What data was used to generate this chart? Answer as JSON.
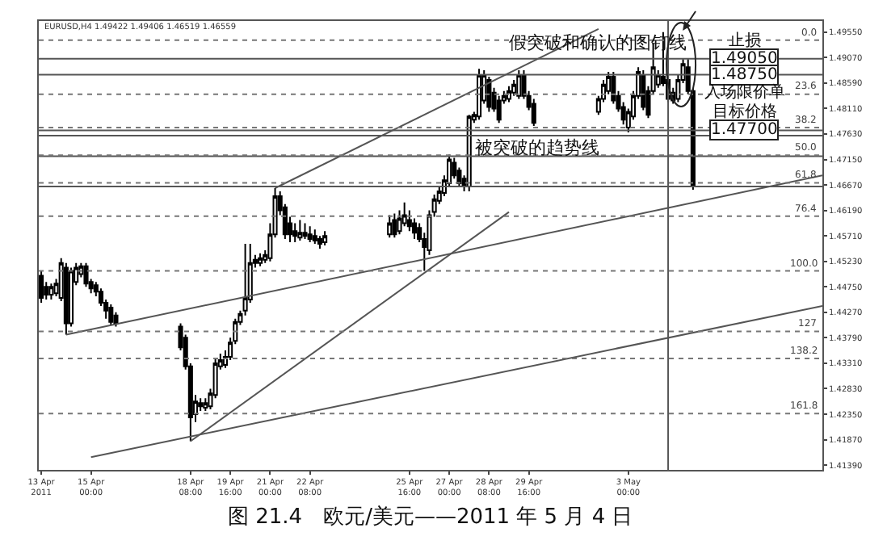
{
  "chart_data": {
    "type": "candlestick",
    "title": "EURUSD,H4 1.49422 1.49406 1.46519 1.46559",
    "color": "#000000",
    "x": [
      "2011-04-13T08:00",
      "2011-04-13T12:00",
      "2011-04-13T16:00",
      "2011-04-13T20:00",
      "2011-04-14T00:00",
      "2011-04-14T04:00",
      "2011-04-14T08:00",
      "2011-04-14T12:00",
      "2011-04-14T16:00",
      "2011-04-14T20:00",
      "2011-04-15T00:00",
      "2011-04-15T04:00",
      "2011-04-15T08:00",
      "2011-04-15T12:00",
      "2011-04-15T16:00",
      "2011-04-15T20:00",
      "2011-04-18T00:00",
      "2011-04-18T04:00",
      "2011-04-18T08:00",
      "2011-04-18T12:00",
      "2011-04-18T16:00",
      "2011-04-18T20:00",
      "2011-04-19T00:00",
      "2011-04-19T04:00",
      "2011-04-19T08:00",
      "2011-04-19T12:00",
      "2011-04-19T16:00",
      "2011-04-19T20:00",
      "2011-04-20T00:00",
      "2011-04-20T04:00",
      "2011-04-20T08:00",
      "2011-04-20T12:00",
      "2011-04-20T16:00",
      "2011-04-20T20:00",
      "2011-04-21T00:00",
      "2011-04-21T04:00",
      "2011-04-21T08:00",
      "2011-04-21T12:00",
      "2011-04-21T16:00",
      "2011-04-21T20:00",
      "2011-04-22T00:00",
      "2011-04-22T04:00",
      "2011-04-22T08:00",
      "2011-04-22T12:00",
      "2011-04-22T16:00",
      "2011-04-22T20:00",
      "2011-04-25T00:00",
      "2011-04-25T04:00",
      "2011-04-25T08:00",
      "2011-04-25T12:00",
      "2011-04-25T16:00",
      "2011-04-25T20:00",
      "2011-04-26T00:00",
      "2011-04-26T04:00",
      "2011-04-26T08:00",
      "2011-04-26T12:00",
      "2011-04-26T16:00",
      "2011-04-26T20:00",
      "2011-04-27T00:00",
      "2011-04-27T04:00",
      "2011-04-27T08:00",
      "2011-04-27T12:00",
      "2011-04-27T16:00",
      "2011-04-27T20:00",
      "2011-04-28T00:00",
      "2011-04-28T04:00",
      "2011-04-28T08:00",
      "2011-04-28T12:00",
      "2011-04-28T16:00",
      "2011-04-28T20:00",
      "2011-04-29T00:00",
      "2011-04-29T04:00",
      "2011-04-29T08:00",
      "2011-04-29T12:00",
      "2011-04-29T16:00",
      "2011-04-29T20:00",
      "2011-05-02T00:00",
      "2011-05-02T04:00",
      "2011-05-02T08:00",
      "2011-05-02T12:00",
      "2011-05-02T16:00",
      "2011-05-02T20:00",
      "2011-05-03T00:00",
      "2011-05-03T04:00",
      "2011-05-03T08:00",
      "2011-05-03T12:00",
      "2011-05-03T16:00",
      "2011-05-03T20:00",
      "2011-05-04T00:00",
      "2011-05-04T04:00",
      "2011-05-04T08:00",
      "2011-05-04T12:00",
      "2011-05-04T16:00",
      "2011-05-04T20:00",
      "2011-05-05T00:00",
      "2011-05-05T04:00"
    ],
    "ohlc": [
      [
        1.4496,
        1.4505,
        1.4445,
        1.4454
      ],
      [
        1.4475,
        1.4484,
        1.4451,
        1.446
      ],
      [
        1.446,
        1.4481,
        1.4451,
        1.4475
      ],
      [
        1.4463,
        1.449,
        1.4457,
        1.4481
      ],
      [
        1.4454,
        1.4529,
        1.4448,
        1.452
      ],
      [
        1.4511,
        1.452,
        1.4385,
        1.4406
      ],
      [
        1.4406,
        1.4511,
        1.44,
        1.4505
      ],
      [
        1.4484,
        1.452,
        1.4478,
        1.4511
      ],
      [
        1.4499,
        1.452,
        1.4493,
        1.4514
      ],
      [
        1.4514,
        1.452,
        1.4475,
        1.4481
      ],
      [
        1.4484,
        1.449,
        1.4463,
        1.4472
      ],
      [
        1.4478,
        1.4484,
        1.4457,
        1.4466
      ],
      [
        1.4466,
        1.4472,
        1.4439,
        1.4445
      ],
      [
        1.4445,
        1.4451,
        1.4415,
        1.443
      ],
      [
        1.4436,
        1.4442,
        1.4403,
        1.4409
      ],
      [
        1.4421,
        1.4427,
        1.44,
        1.4406
      ],
      [
        1.44,
        1.4406,
        1.4355,
        1.4361
      ],
      [
        1.4379,
        1.4385,
        1.4319,
        1.4325
      ],
      [
        1.4325,
        1.4331,
        1.4184,
        1.4229
      ],
      [
        1.4235,
        1.4271,
        1.422,
        1.4259
      ],
      [
        1.4256,
        1.4265,
        1.4241,
        1.425
      ],
      [
        1.4247,
        1.4265,
        1.4241,
        1.4256
      ],
      [
        1.425,
        1.4283,
        1.4244,
        1.4274
      ],
      [
        1.4271,
        1.434,
        1.4265,
        1.4331
      ],
      [
        1.4325,
        1.4349,
        1.4319,
        1.4337
      ],
      [
        1.4328,
        1.4355,
        1.4322,
        1.4343
      ],
      [
        1.4343,
        1.4379,
        1.4337,
        1.437
      ],
      [
        1.4373,
        1.4415,
        1.4367,
        1.4409
      ],
      [
        1.4409,
        1.443,
        1.4403,
        1.4424
      ],
      [
        1.443,
        1.4556,
        1.4421,
        1.4454
      ],
      [
        1.4451,
        1.4556,
        1.4445,
        1.452
      ],
      [
        1.4526,
        1.4535,
        1.4511,
        1.452
      ],
      [
        1.452,
        1.4538,
        1.4514,
        1.4529
      ],
      [
        1.4526,
        1.4544,
        1.452,
        1.4535
      ],
      [
        1.4529,
        1.4595,
        1.4523,
        1.4574
      ],
      [
        1.4574,
        1.4661,
        1.4568,
        1.4646
      ],
      [
        1.4646,
        1.4655,
        1.461,
        1.4619
      ],
      [
        1.4625,
        1.4631,
        1.4565,
        1.4574
      ],
      [
        1.4595,
        1.4607,
        1.4559,
        1.4574
      ],
      [
        1.458,
        1.4595,
        1.4559,
        1.4571
      ],
      [
        1.4568,
        1.4601,
        1.4562,
        1.4577
      ],
      [
        1.4577,
        1.4595,
        1.4565,
        1.4571
      ],
      [
        1.4574,
        1.4589,
        1.4559,
        1.4565
      ],
      [
        1.4571,
        1.4583,
        1.4556,
        1.4562
      ],
      [
        1.4565,
        1.4571,
        1.4547,
        1.4556
      ],
      [
        1.4559,
        1.458,
        1.4553,
        1.4571
      ],
      [
        1.4574,
        1.461,
        1.4568,
        1.4595
      ],
      [
        1.4601,
        1.4613,
        1.4568,
        1.4574
      ],
      [
        1.458,
        1.4619,
        1.4574,
        1.4604
      ],
      [
        1.4595,
        1.4634,
        1.4589,
        1.461
      ],
      [
        1.4601,
        1.4619,
        1.458,
        1.4589
      ],
      [
        1.4595,
        1.4604,
        1.4565,
        1.4577
      ],
      [
        1.4586,
        1.4595,
        1.4559,
        1.4565
      ],
      [
        1.4565,
        1.4577,
        1.4505,
        1.455
      ],
      [
        1.4544,
        1.4619,
        1.4535,
        1.461
      ],
      [
        1.4616,
        1.4649,
        1.4607,
        1.464
      ],
      [
        1.4637,
        1.4664,
        1.4631,
        1.4655
      ],
      [
        1.4652,
        1.4685,
        1.4646,
        1.4676
      ],
      [
        1.467,
        1.4724,
        1.4664,
        1.4715
      ],
      [
        1.4709,
        1.4718,
        1.4679,
        1.4685
      ],
      [
        1.4694,
        1.47,
        1.4664,
        1.467
      ],
      [
        1.4679,
        1.4685,
        1.4655,
        1.4664
      ],
      [
        1.4664,
        1.4799,
        1.4655,
        1.4796
      ],
      [
        1.479,
        1.4805,
        1.4784,
        1.4799
      ],
      [
        1.4796,
        1.4886,
        1.479,
        1.4874
      ],
      [
        1.4826,
        1.4883,
        1.482,
        1.4874
      ],
      [
        1.4865,
        1.4871,
        1.4805,
        1.4814
      ],
      [
        1.4841,
        1.485,
        1.4805,
        1.4811
      ],
      [
        1.4826,
        1.4835,
        1.4784,
        1.479
      ],
      [
        1.4826,
        1.4844,
        1.482,
        1.4835
      ],
      [
        1.4829,
        1.4853,
        1.4823,
        1.4844
      ],
      [
        1.4841,
        1.4865,
        1.4835,
        1.4856
      ],
      [
        1.4835,
        1.4883,
        1.4829,
        1.4874
      ],
      [
        1.4874,
        1.4883,
        1.4829,
        1.4835
      ],
      [
        1.4835,
        1.4844,
        1.4808,
        1.4814
      ],
      [
        1.482,
        1.4829,
        1.4778,
        1.4784
      ],
      [
        1.4805,
        1.4835,
        1.4799,
        1.4829
      ],
      [
        1.4829,
        1.4865,
        1.4823,
        1.4856
      ],
      [
        1.4844,
        1.488,
        1.4838,
        1.4871
      ],
      [
        1.4871,
        1.488,
        1.482,
        1.4826
      ],
      [
        1.4835,
        1.4844,
        1.4805,
        1.4811
      ],
      [
        1.4814,
        1.4823,
        1.4781,
        1.479
      ],
      [
        1.4775,
        1.4811,
        1.4766,
        1.4805
      ],
      [
        1.4796,
        1.4844,
        1.479,
        1.4835
      ],
      [
        1.4835,
        1.4889,
        1.4829,
        1.488
      ],
      [
        1.4874,
        1.4883,
        1.4808,
        1.4814
      ],
      [
        1.4844,
        1.4853,
        1.4793,
        1.4799
      ],
      [
        1.4844,
        1.4934,
        1.4838,
        1.4889
      ],
      [
        1.4856,
        1.4883,
        1.485,
        1.4874
      ],
      [
        1.4871,
        1.4955,
        1.4853,
        1.4859
      ],
      [
        1.4865,
        1.4874,
        1.4823,
        1.4829
      ],
      [
        1.4841,
        1.485,
        1.482,
        1.4826
      ],
      [
        1.4829,
        1.4874,
        1.4823,
        1.4865
      ],
      [
        1.4865,
        1.4904,
        1.4859,
        1.4895
      ],
      [
        1.4889,
        1.4904,
        1.4838,
        1.4844
      ],
      [
        1.4844,
        1.485,
        1.4658,
        1.4664
      ]
    ],
    "series": [
      {
        "type": "line",
        "x": [
          "2011-04-14T04:00",
          "2011-05-09T12:00"
        ],
        "values": [
          1.4385,
          1.4685
        ],
        "color": "#555555"
      },
      {
        "type": "line",
        "x": [
          "2011-04-15T00:00",
          "2011-05-09T12:00"
        ],
        "values": [
          1.4154,
          1.4439
        ],
        "color": "#555555"
      },
      {
        "type": "line",
        "x": [
          "2011-04-18T08:00",
          "2011-04-29T00:00"
        ],
        "values": [
          1.4184,
          1.4616
        ],
        "color": "#555555"
      },
      {
        "type": "line",
        "x": [
          "2011-04-21T04:00",
          "2011-05-02T00:00"
        ],
        "values": [
          1.4661,
          1.4961
        ],
        "color": "#555555"
      }
    ],
    "xlim": [
      "2011-04-13T06:00",
      "2011-05-09T12:00"
    ],
    "xticks": [
      {
        "value": "2011-04-13T08:00",
        "label": "13 Apr 2011"
      },
      {
        "value": "2011-04-15T00:00",
        "label": "15 Apr 00:00"
      },
      {
        "value": "2011-04-18T08:00",
        "label": "18 Apr 08:00"
      },
      {
        "value": "2011-04-19T16:00",
        "label": "19 Apr 16:00"
      },
      {
        "value": "2011-04-21T00:00",
        "label": "21 Apr 00:00"
      },
      {
        "value": "2011-04-22T08:00",
        "label": "22 Apr 08:00"
      },
      {
        "value": "2011-04-25T16:00",
        "label": "25 Apr 16:00"
      },
      {
        "value": "2011-04-27T00:00",
        "label": "27 Apr 00:00"
      },
      {
        "value": "2011-04-28T08:00",
        "label": "28 Apr 08:00"
      },
      {
        "value": "2011-04-29T16:00",
        "label": "29 Apr 16:00"
      },
      {
        "value": "2011-05-03T00:00",
        "label": "3 May 00:00"
      }
    ],
    "ylim": [
      1.413,
      1.4976
    ],
    "yticks": [
      {
        "value": 1.4955,
        "label": "1.49550"
      },
      {
        "value": 1.4907,
        "label": "1.49070"
      },
      {
        "value": 1.4859,
        "label": "1.48590"
      },
      {
        "value": 1.4811,
        "label": "1.48110"
      },
      {
        "value": 1.4763,
        "label": "1.47630"
      },
      {
        "value": 1.4715,
        "label": "1.47150"
      },
      {
        "value": 1.4667,
        "label": "1.46670"
      },
      {
        "value": 1.4619,
        "label": "1.46190"
      },
      {
        "value": 1.4571,
        "label": "1.45710"
      },
      {
        "value": 1.4523,
        "label": "1.45230"
      },
      {
        "value": 1.4475,
        "label": "1.44750"
      },
      {
        "value": 1.4427,
        "label": "1.44270"
      },
      {
        "value": 1.4379,
        "label": "1.43790"
      },
      {
        "value": 1.4331,
        "label": "1.43310"
      },
      {
        "value": 1.4283,
        "label": "1.42830"
      },
      {
        "value": 1.4235,
        "label": "1.42350"
      },
      {
        "value": 1.4187,
        "label": "1.41870"
      },
      {
        "value": 1.4139,
        "label": "1.41390"
      }
    ],
    "ref_lines": [
      {
        "axis": "y",
        "value": 1.4905,
        "label": "1.49050",
        "color": "#555555",
        "line_style": "solid"
      },
      {
        "axis": "y",
        "value": 1.4875,
        "label": "1.48750",
        "color": "#555555",
        "line_style": "solid"
      },
      {
        "axis": "y",
        "value": 1.477,
        "label": "1.47700",
        "color": "#555555",
        "line_style": "solid"
      },
      {
        "axis": "y",
        "value": 1.476,
        "label": null,
        "color": "#555555",
        "line_style": "solid"
      },
      {
        "axis": "y",
        "value": 1.4721,
        "label": null,
        "color": "#555555",
        "line_style": "solid"
      },
      {
        "axis": "y",
        "value": 1.4664,
        "label": null,
        "color": "#555555",
        "line_style": "solid"
      },
      {
        "axis": "x",
        "value": "2011-05-04T08:00",
        "label": null,
        "color": "#555555",
        "line_style": "solid"
      },
      {
        "axis": "y",
        "value": 1.494,
        "label": null,
        "color": "#777777",
        "line_style": "dotted"
      },
      {
        "axis": "y",
        "value": 1.4838,
        "label": null,
        "color": "#777777",
        "line_style": "dotted"
      },
      {
        "axis": "y",
        "value": 1.4775,
        "label": null,
        "color": "#777777",
        "line_style": "dotted"
      },
      {
        "axis": "y",
        "value": 1.4723,
        "label": null,
        "color": "#777777",
        "line_style": "dotted"
      },
      {
        "axis": "y",
        "value": 1.4671,
        "label": null,
        "color": "#777777",
        "line_style": "dotted"
      },
      {
        "axis": "y",
        "value": 1.4608,
        "label": null,
        "color": "#777777",
        "line_style": "dotted"
      },
      {
        "axis": "y",
        "value": 1.4505,
        "label": null,
        "color": "#777777",
        "line_style": "dotted"
      },
      {
        "axis": "y",
        "value": 1.4391,
        "label": null,
        "color": "#777777",
        "line_style": "dotted"
      },
      {
        "axis": "y",
        "value": 1.434,
        "label": null,
        "color": "#777777",
        "line_style": "dotted"
      },
      {
        "axis": "y",
        "value": 1.4236,
        "label": null,
        "color": "#777777",
        "line_style": "dotted"
      }
    ],
    "annotations": [
      {
        "text": "假突破和确认的图钉线",
        "x": "2011-05-02T00:00",
        "y": 1.4961
      },
      "被突破的趋势线",
      "止损",
      "入场限价单",
      "目标价格",
      "图 21.4　欧元/美元——2011 年 5 月 4 日",
      "0.0",
      "23.6",
      "38.2",
      "50.0",
      "61.8",
      "76.4",
      "100.0",
      "127",
      "138.2",
      "161.8"
    ]
  }
}
